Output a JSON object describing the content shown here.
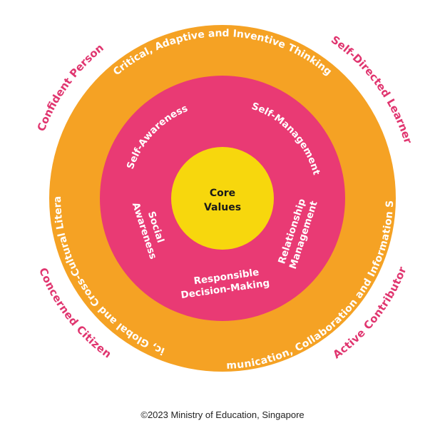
{
  "colors": {
    "outcome_text": "#e0356f",
    "outer_ring": "#f5a224",
    "middle_ring": "#e93a74",
    "core": "#f7d70d"
  },
  "core": {
    "line1": "Core",
    "line2": "Values"
  },
  "sel_competencies": {
    "self_awareness": "Self-Awareness",
    "self_management": "Self-Management",
    "social_awareness": {
      "line1": "Social",
      "line2": "Awareness"
    },
    "relationship_management": {
      "line1": "Relationship",
      "line2": "Management"
    },
    "responsible_decision_making": {
      "line1": "Responsible",
      "line2": "Decision-Making"
    }
  },
  "competencies_21st_century": {
    "critical_thinking": "Critical, Adaptive and Inventive Thinking",
    "civic_literacy": "Civic, Global and Cross-Cultural Literacy",
    "communication": "Communication, Collaboration and Information Skills"
  },
  "outcomes": {
    "confident_person": "Confident Person",
    "self_directed_learner": "Self-Directed Learner",
    "concerned_citizen": "Concerned Citizen",
    "active_contributor": "Active Contributor"
  },
  "footer": "©2023 Ministry of Education, Singapore"
}
